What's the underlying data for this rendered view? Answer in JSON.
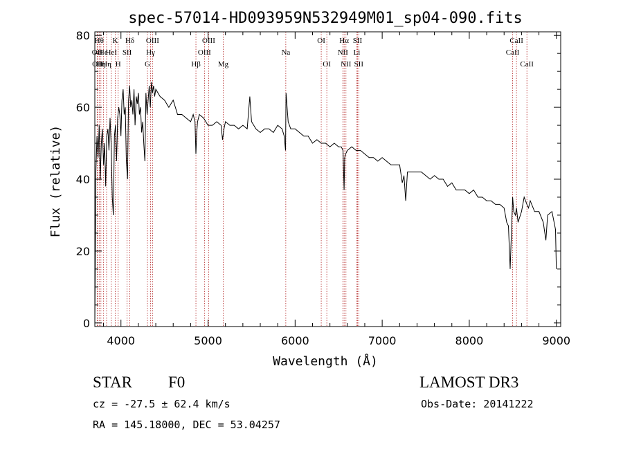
{
  "chart_data": {
    "type": "line",
    "title": "spec-57014-HD093959N532949M01_sp04-090.fits",
    "xlabel": "Wavelength (Å)",
    "ylabel": "Flux (relative)",
    "xlim": [
      3700,
      9050
    ],
    "ylim": [
      -1,
      81
    ],
    "xticks": [
      4000,
      5000,
      6000,
      7000,
      8000,
      9000
    ],
    "yticks": [
      0,
      20,
      40,
      60,
      80
    ],
    "grid": false,
    "series": [
      {
        "x": [
          3700,
          3712,
          3725,
          3737,
          3750,
          3762,
          3775,
          3787,
          3800,
          3812,
          3825,
          3837,
          3850,
          3862,
          3875,
          3887,
          3900,
          3912,
          3925,
          3937,
          3950,
          3962,
          3975,
          3987,
          4000,
          4012,
          4025,
          4037,
          4050,
          4062,
          4075,
          4087,
          4100,
          4112,
          4125,
          4137,
          4150,
          4162,
          4175,
          4187,
          4200,
          4212,
          4225,
          4237,
          4250,
          4262,
          4275,
          4287,
          4300,
          4312,
          4325,
          4337,
          4350,
          4362,
          4375,
          4387,
          4400,
          4450,
          4500,
          4550,
          4600,
          4650,
          4700,
          4750,
          4800,
          4830,
          4850,
          4861,
          4870,
          4880,
          4900,
          4950,
          5000,
          5050,
          5100,
          5150,
          5167,
          5183,
          5200,
          5250,
          5300,
          5350,
          5400,
          5450,
          5480,
          5500,
          5550,
          5600,
          5650,
          5700,
          5750,
          5800,
          5850,
          5875,
          5890,
          5896,
          5920,
          5950,
          6000,
          6050,
          6100,
          6150,
          6200,
          6250,
          6300,
          6350,
          6400,
          6450,
          6500,
          6530,
          6550,
          6563,
          6570,
          6580,
          6600,
          6650,
          6700,
          6750,
          6800,
          6850,
          6900,
          6950,
          7000,
          7050,
          7100,
          7150,
          7200,
          7230,
          7250,
          7270,
          7290,
          7300,
          7350,
          7400,
          7450,
          7500,
          7550,
          7600,
          7650,
          7700,
          7750,
          7800,
          7850,
          7900,
          7950,
          8000,
          8050,
          8100,
          8150,
          8200,
          8250,
          8300,
          8350,
          8400,
          8430,
          8450,
          8470,
          8498,
          8510,
          8530,
          8542,
          8560,
          8600,
          8630,
          8662,
          8680,
          8700,
          8750,
          8800,
          8850,
          8880,
          8900,
          8950,
          8990,
          9000
        ],
        "y": [
          0,
          42,
          52,
          46,
          55,
          40,
          50,
          54,
          44,
          50,
          38,
          52,
          54,
          48,
          57,
          50,
          35,
          30,
          52,
          55,
          45,
          57,
          60,
          58,
          52,
          62,
          65,
          58,
          60,
          45,
          40,
          62,
          66,
          60,
          62,
          58,
          65,
          55,
          63,
          61,
          64,
          58,
          60,
          53,
          56,
          50,
          45,
          64,
          58,
          62,
          66,
          60,
          67,
          64,
          66,
          63,
          65,
          63,
          62,
          60,
          62,
          58,
          58,
          57,
          56,
          58,
          56,
          47,
          53,
          56,
          58,
          57,
          55,
          55,
          56,
          55,
          51,
          54,
          56,
          55,
          55,
          54,
          55,
          54,
          63,
          56,
          54,
          53,
          54,
          54,
          53,
          55,
          54,
          52,
          48,
          64,
          56,
          54,
          54,
          53,
          52,
          52,
          50,
          51,
          50,
          50,
          49,
          50,
          49,
          49,
          48,
          37,
          46,
          47,
          48,
          49,
          48,
          48,
          47,
          46,
          46,
          45,
          46,
          45,
          44,
          44,
          44,
          39,
          41,
          34,
          42,
          42,
          42,
          42,
          42,
          41,
          40,
          41,
          40,
          40,
          38,
          39,
          37,
          37,
          37,
          36,
          37,
          35,
          35,
          34,
          34,
          33,
          33,
          32,
          28,
          27,
          15,
          35,
          31,
          30,
          32,
          28,
          31,
          35,
          33,
          32,
          34,
          31,
          31,
          28,
          23,
          30,
          31,
          26,
          15
        ]
      }
    ],
    "line_labels": [
      {
        "wavelength": 3727,
        "label": "OII",
        "row": 2
      },
      {
        "wavelength": 3730,
        "label": "OII",
        "row": 3
      },
      {
        "wavelength": 3750,
        "label": "Hθ",
        "row": 1
      },
      {
        "wavelength": 3770,
        "label": "Hη",
        "row": 3
      },
      {
        "wavelength": 3798,
        "label": "He",
        "row": 2
      },
      {
        "wavelength": 3835,
        "label": "Hη",
        "row": 3
      },
      {
        "wavelength": 3889,
        "label": "HeI",
        "row": 2
      },
      {
        "wavelength": 3934,
        "label": "K",
        "row": 1
      },
      {
        "wavelength": 3968,
        "label": "H",
        "row": 3
      },
      {
        "wavelength": 4070,
        "label": "SII",
        "row": 2
      },
      {
        "wavelength": 4102,
        "label": "Hδ",
        "row": 1
      },
      {
        "wavelength": 4304,
        "label": "G",
        "row": 3
      },
      {
        "wavelength": 4340,
        "label": "Hγ",
        "row": 2
      },
      {
        "wavelength": 4363,
        "label": "OIII",
        "row": 1
      },
      {
        "wavelength": 4861,
        "label": "Hβ",
        "row": 3
      },
      {
        "wavelength": 4959,
        "label": "OIII",
        "row": 2
      },
      {
        "wavelength": 5007,
        "label": "OIII",
        "row": 1
      },
      {
        "wavelength": 5175,
        "label": "Mg",
        "row": 3
      },
      {
        "wavelength": 5893,
        "label": "Na",
        "row": 2
      },
      {
        "wavelength": 6300,
        "label": "OI",
        "row": 1
      },
      {
        "wavelength": 6364,
        "label": "OI",
        "row": 3
      },
      {
        "wavelength": 6548,
        "label": "NII",
        "row": 2
      },
      {
        "wavelength": 6563,
        "label": "Hα",
        "row": 1
      },
      {
        "wavelength": 6584,
        "label": "NII",
        "row": 3
      },
      {
        "wavelength": 6708,
        "label": "Li",
        "row": 2
      },
      {
        "wavelength": 6717,
        "label": "SII",
        "row": 1
      },
      {
        "wavelength": 6731,
        "label": "SII",
        "row": 3
      },
      {
        "wavelength": 8498,
        "label": "CaII",
        "row": 2
      },
      {
        "wavelength": 8542,
        "label": "CaII",
        "row": 1
      },
      {
        "wavelength": 8662,
        "label": "CaII",
        "row": 3
      }
    ]
  },
  "info": {
    "object_class": "STAR",
    "subclass": "F0",
    "survey": "LAMOST DR3",
    "cz": "cz = -27.5 ± 62.4 km/s",
    "obs_date": "Obs-Date: 20141222",
    "radec": "RA = 145.18000, DEC =  53.04257"
  },
  "colors": {
    "spectrum": "#000000",
    "line_marker": "#b22222",
    "axes": "#000000"
  }
}
